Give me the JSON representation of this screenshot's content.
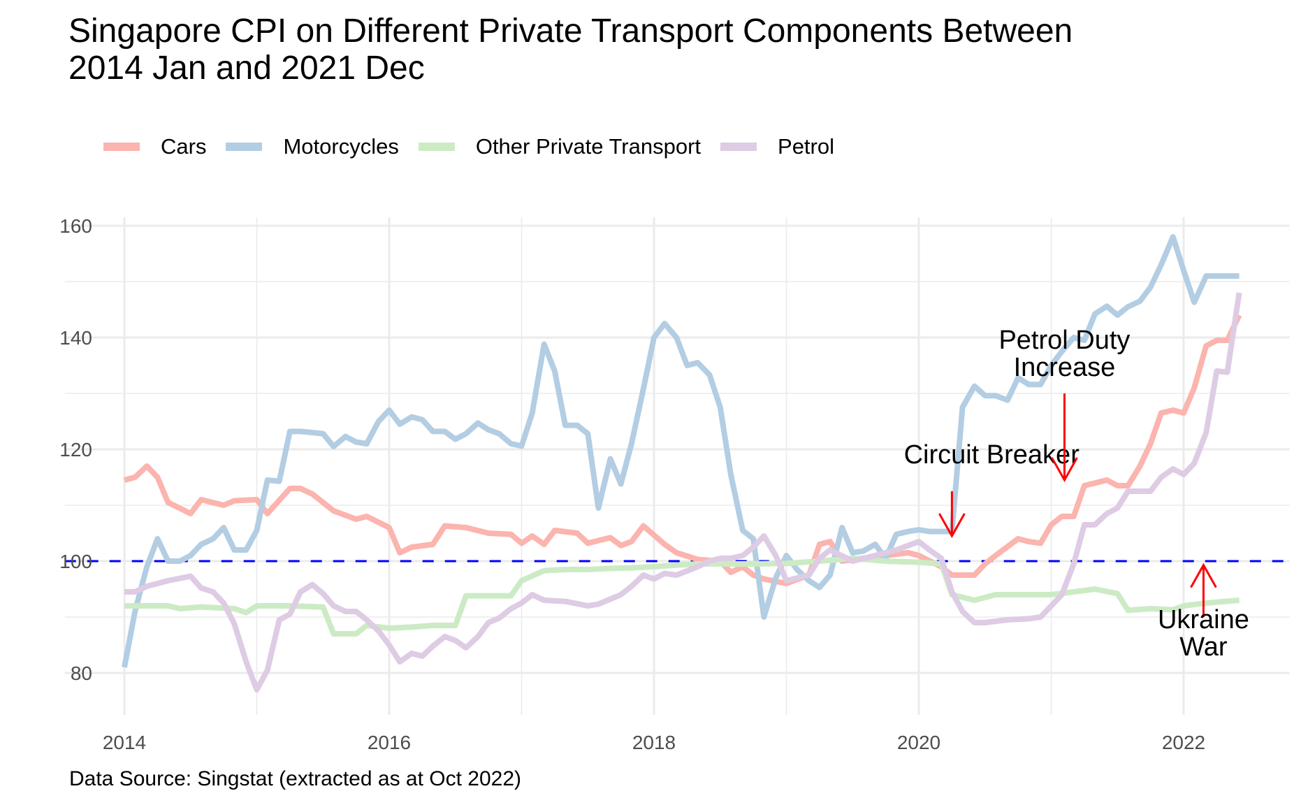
{
  "chart_data": {
    "type": "line",
    "title": "Singapore CPI on Different Private Transport Components Between 2014 Jan and 2021 Dec",
    "title_lines": [
      "Singapore CPI on Different Private Transport Components Between",
      "2014 Jan and 2021 Dec"
    ],
    "xlabel": "",
    "ylabel": "",
    "caption": "Data Source: Singstat (extracted as at Oct 2022)",
    "xlim": [
      2013.55,
      2022.8
    ],
    "ylim": [
      72.5,
      161.5
    ],
    "x_ticks": [
      2014,
      2016,
      2018,
      2020,
      2022
    ],
    "x_tick_labels": [
      "2014",
      "2016",
      "2018",
      "2020",
      "2022"
    ],
    "y_ticks": [
      80,
      100,
      120,
      140,
      160
    ],
    "y_tick_labels": [
      "80",
      "100",
      "120",
      "140",
      "160"
    ],
    "grid": true,
    "legend_position": "top",
    "reference_line": {
      "y": 100,
      "style": "dashed",
      "color": "#0000FF"
    },
    "series": [
      {
        "name": "Cars",
        "color": "#FBB4AE",
        "x": [
          2014.0,
          2014.08,
          2014.17,
          2014.25,
          2014.33,
          2014.5,
          2014.58,
          2014.75,
          2014.83,
          2015.0,
          2015.08,
          2015.25,
          2015.33,
          2015.42,
          2015.58,
          2015.75,
          2015.83,
          2016.0,
          2016.08,
          2016.17,
          2016.33,
          2016.42,
          2016.58,
          2016.75,
          2016.92,
          2017.0,
          2017.08,
          2017.17,
          2017.25,
          2017.42,
          2017.5,
          2017.67,
          2017.75,
          2017.83,
          2017.92,
          2018.08,
          2018.17,
          2018.33,
          2018.5,
          2018.58,
          2018.67,
          2018.75,
          2018.83,
          2019.0,
          2019.17,
          2019.25,
          2019.33,
          2019.42,
          2019.58,
          2019.75,
          2019.92,
          2020.0,
          2020.17,
          2020.25,
          2020.42,
          2020.5,
          2020.58,
          2020.75,
          2020.83,
          2020.92,
          2021.0,
          2021.08,
          2021.17,
          2021.25,
          2021.42,
          2021.5,
          2021.58,
          2021.67,
          2021.75,
          2021.83,
          2021.92,
          2022.0,
          2022.08,
          2022.17,
          2022.25,
          2022.33,
          2022.42
        ],
        "values": [
          114.5,
          115,
          117,
          115,
          110.5,
          108.5,
          111,
          110,
          110.8,
          111,
          108.5,
          113,
          113,
          112,
          109,
          107.5,
          108,
          106,
          101.5,
          102.5,
          103,
          106.3,
          106,
          105,
          104.8,
          103.2,
          104.5,
          103,
          105.5,
          105,
          103.2,
          104.2,
          102.8,
          103.5,
          106.3,
          103,
          101.5,
          100.3,
          100,
          98,
          99,
          97.5,
          96.8,
          96,
          97.5,
          103,
          103.5,
          100,
          100.5,
          101,
          101.5,
          101,
          99,
          97.5,
          97.5,
          99.5,
          101,
          104,
          103.5,
          103.2,
          106.5,
          108,
          108,
          113.5,
          114.5,
          113.5,
          113.5,
          117,
          121,
          126.5,
          127,
          126.5,
          131,
          138.5,
          139.5,
          139.5,
          144
        ]
      },
      {
        "name": "Motorcycles",
        "color": "#B3CDE3",
        "x": [
          2014.0,
          2014.08,
          2014.17,
          2014.25,
          2014.33,
          2014.42,
          2014.5,
          2014.58,
          2014.67,
          2014.75,
          2014.83,
          2014.92,
          2015.0,
          2015.08,
          2015.17,
          2015.25,
          2015.33,
          2015.42,
          2015.5,
          2015.58,
          2015.67,
          2015.75,
          2015.83,
          2015.92,
          2016.0,
          2016.08,
          2016.17,
          2016.25,
          2016.33,
          2016.42,
          2016.5,
          2016.58,
          2016.67,
          2016.75,
          2016.83,
          2016.92,
          2017.0,
          2017.08,
          2017.17,
          2017.25,
          2017.33,
          2017.42,
          2017.5,
          2017.58,
          2017.67,
          2017.75,
          2017.83,
          2017.92,
          2018.0,
          2018.08,
          2018.17,
          2018.25,
          2018.33,
          2018.42,
          2018.5,
          2018.58,
          2018.67,
          2018.75,
          2018.83,
          2018.92,
          2019.0,
          2019.08,
          2019.17,
          2019.25,
          2019.33,
          2019.42,
          2019.5,
          2019.58,
          2019.67,
          2019.75,
          2019.83,
          2019.92,
          2020.0,
          2020.08,
          2020.17,
          2020.25,
          2020.33,
          2020.42,
          2020.5,
          2020.58,
          2020.67,
          2020.75,
          2020.83,
          2020.92,
          2021.0,
          2021.08,
          2021.17,
          2021.25,
          2021.33,
          2021.42,
          2021.5,
          2021.58,
          2021.67,
          2021.75,
          2021.83,
          2021.92,
          2022.0,
          2022.08,
          2022.17,
          2022.25,
          2022.33,
          2022.42
        ],
        "values": [
          81,
          91,
          99,
          104,
          100,
          100,
          101,
          103,
          104,
          106,
          102,
          102,
          105.5,
          114.5,
          114.3,
          123.2,
          123.2,
          123,
          122.8,
          120.5,
          122.3,
          121.3,
          121,
          125,
          127,
          124.5,
          125.8,
          125.3,
          123.2,
          123.2,
          121.8,
          122.8,
          124.7,
          123.5,
          122.8,
          121,
          120.6,
          126.5,
          138.8,
          134,
          124.3,
          124.3,
          122.8,
          109.5,
          118.3,
          113.8,
          121,
          130.8,
          140,
          142.5,
          140,
          135,
          135.5,
          133.3,
          127.5,
          115.5,
          105.5,
          104,
          90,
          97,
          101,
          98.5,
          96.5,
          95.3,
          97.5,
          106,
          101.5,
          101.8,
          103,
          100.5,
          104.8,
          105.3,
          105.6,
          105.3,
          105.3,
          105.3,
          127.5,
          131.3,
          129.6,
          129.6,
          128.8,
          132.8,
          131.6,
          131.6,
          135,
          137.5,
          140,
          139.5,
          144.2,
          145.6,
          144,
          145.5,
          146.5,
          149,
          153,
          158,
          152,
          146.3,
          151,
          151,
          151,
          151
        ]
      },
      {
        "name": "Other Private Transport",
        "color": "#CCEBC5",
        "x": [
          2014.0,
          2014.17,
          2014.33,
          2014.42,
          2014.58,
          2014.83,
          2014.92,
          2015.0,
          2015.25,
          2015.5,
          2015.58,
          2015.75,
          2015.83,
          2016.0,
          2016.17,
          2016.33,
          2016.5,
          2016.58,
          2016.75,
          2016.92,
          2017.0,
          2017.17,
          2017.33,
          2017.5,
          2017.67,
          2017.83,
          2018.0,
          2018.17,
          2018.33,
          2018.5,
          2018.75,
          2019.0,
          2019.25,
          2019.5,
          2019.75,
          2020.0,
          2020.17,
          2020.25,
          2020.42,
          2020.58,
          2020.75,
          2021.0,
          2021.17,
          2021.33,
          2021.5,
          2021.58,
          2021.75,
          2021.92,
          2022.0,
          2022.17,
          2022.42
        ],
        "values": [
          92,
          92,
          92,
          91.5,
          91.8,
          91.5,
          90.8,
          92,
          92,
          91.8,
          87,
          87,
          88.5,
          88,
          88.2,
          88.5,
          88.5,
          93.8,
          93.8,
          93.8,
          96.5,
          98.3,
          98.5,
          98.5,
          98.7,
          98.8,
          99,
          99.3,
          99.5,
          99.5,
          99.5,
          99.6,
          100,
          100.5,
          100,
          99.8,
          99.5,
          94,
          93,
          94,
          94,
          94,
          94.5,
          95,
          94.2,
          91.2,
          91.5,
          91.3,
          92,
          92.5,
          93
        ]
      },
      {
        "name": "Petrol",
        "color": "#DECBE4",
        "x": [
          2014.0,
          2014.08,
          2014.17,
          2014.33,
          2014.5,
          2014.58,
          2014.67,
          2014.75,
          2014.83,
          2014.92,
          2015.0,
          2015.08,
          2015.17,
          2015.25,
          2015.33,
          2015.42,
          2015.5,
          2015.58,
          2015.67,
          2015.75,
          2015.83,
          2015.92,
          2016.0,
          2016.08,
          2016.17,
          2016.25,
          2016.33,
          2016.42,
          2016.5,
          2016.58,
          2016.67,
          2016.75,
          2016.83,
          2016.92,
          2017.0,
          2017.08,
          2017.17,
          2017.33,
          2017.5,
          2017.58,
          2017.75,
          2017.83,
          2017.92,
          2018.0,
          2018.08,
          2018.17,
          2018.33,
          2018.42,
          2018.5,
          2018.58,
          2018.67,
          2018.75,
          2018.83,
          2018.92,
          2019.0,
          2019.17,
          2019.25,
          2019.33,
          2019.5,
          2019.67,
          2019.83,
          2020.0,
          2020.08,
          2020.17,
          2020.25,
          2020.33,
          2020.42,
          2020.5,
          2020.67,
          2020.83,
          2020.92,
          2021.0,
          2021.08,
          2021.17,
          2021.25,
          2021.33,
          2021.42,
          2021.5,
          2021.58,
          2021.67,
          2021.75,
          2021.83,
          2021.92,
          2022.0,
          2022.08,
          2022.17,
          2022.25,
          2022.33,
          2022.42
        ],
        "values": [
          94.5,
          94.5,
          95.5,
          96.5,
          97.3,
          95.2,
          94.5,
          92.5,
          88.8,
          82,
          77,
          80.5,
          89.5,
          90.5,
          94.5,
          95.8,
          94.2,
          92,
          91,
          91,
          89.5,
          87.5,
          85,
          82,
          83.5,
          83,
          84.8,
          86.5,
          85.8,
          84.5,
          86.5,
          89,
          89.8,
          91.5,
          92.5,
          94,
          93,
          92.8,
          92,
          92.3,
          94,
          95.5,
          97.5,
          96.8,
          97.8,
          97.5,
          99,
          100,
          100.5,
          100.5,
          101,
          102.5,
          104.5,
          101,
          96.5,
          97.5,
          100.5,
          102,
          100,
          101,
          102,
          103.5,
          102,
          100.5,
          94.5,
          91,
          89,
          89,
          89.5,
          89.7,
          90,
          92,
          94,
          99.5,
          106.5,
          106.5,
          108.5,
          109.5,
          112.5,
          112.5,
          112.5,
          115,
          116.5,
          115.5,
          117.5,
          123,
          134,
          133.8,
          148
        ]
      }
    ],
    "annotations": [
      {
        "text_lines": [
          "Circuit Breaker"
        ],
        "arrow_x": 2020.25,
        "arrow_from": 112.5,
        "arrow_to": 104.5,
        "arrow_direction": "down",
        "text_y": 117.5,
        "color": "#FF0000"
      },
      {
        "text_lines": [
          "Petrol Duty",
          "Increase"
        ],
        "arrow_x": 2021.1,
        "arrow_from": 130,
        "arrow_to": 114.5,
        "arrow_direction": "down",
        "text_y": 138,
        "color": "#FF0000"
      },
      {
        "text_lines": [
          "Ukraine",
          "War"
        ],
        "arrow_x": 2022.15,
        "arrow_from": 90,
        "arrow_to": 99.3,
        "arrow_direction": "up",
        "text_y": 88,
        "color": "#FF0000"
      }
    ]
  }
}
